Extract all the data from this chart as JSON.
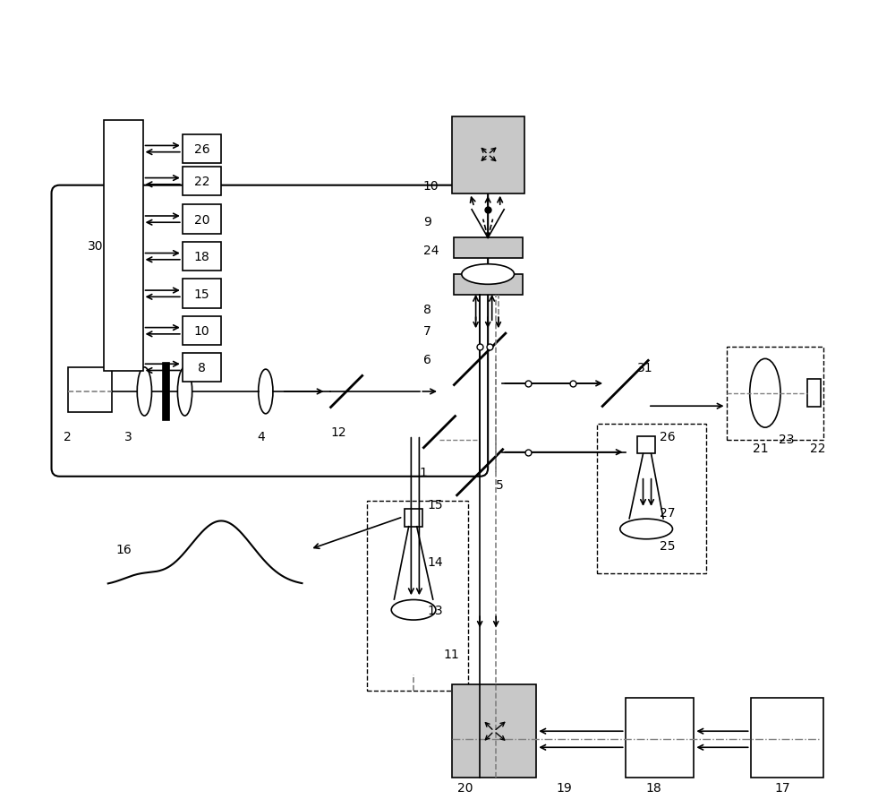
{
  "bg_color": "#ffffff",
  "line_color": "#000000",
  "gray_fill": "#c8c8c8",
  "light_gray": "#d8d8d8"
}
